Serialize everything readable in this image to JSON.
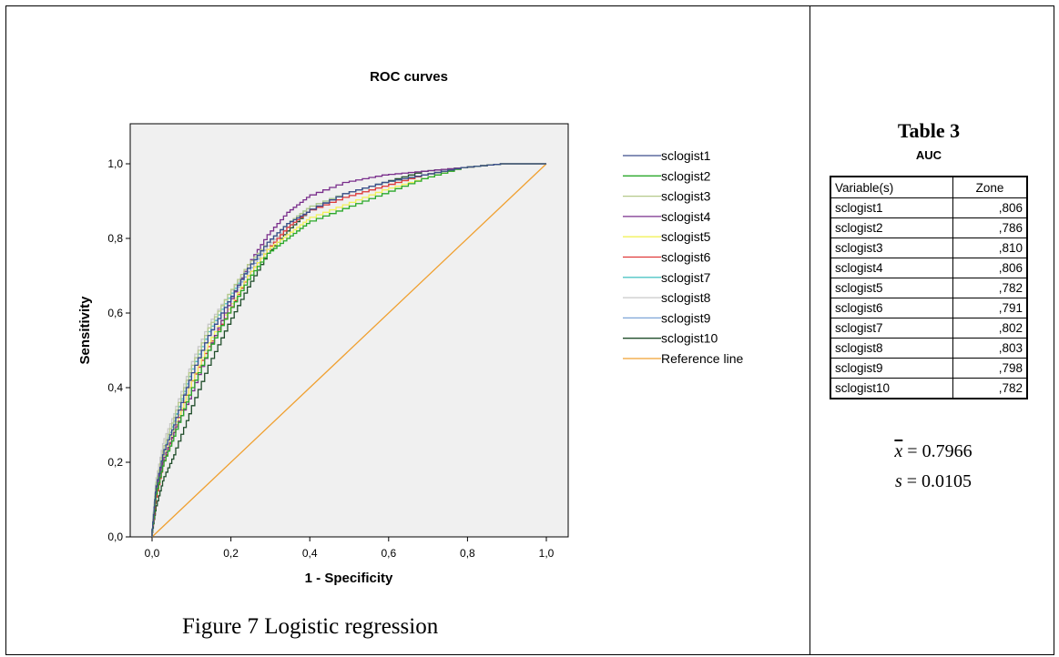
{
  "chart_data": {
    "type": "line",
    "title": "ROC curves",
    "xlabel": "1 - Specificity",
    "ylabel": "Sensitivity",
    "xlim": [
      -0.05,
      1.05
    ],
    "ylim": [
      0.0,
      1.0
    ],
    "xticks": [
      "0,0",
      "0,2",
      "0,4",
      "0,6",
      "0,8",
      "1,0"
    ],
    "yticks": [
      "0,0",
      "0,2",
      "0,4",
      "0,6",
      "0,8",
      "1,0"
    ],
    "grid": false,
    "legend_position": "right",
    "series": [
      {
        "name": "sclogist1",
        "color": "#3c4d8c",
        "x": [
          0,
          0.01,
          0.03,
          0.06,
          0.1,
          0.15,
          0.2,
          0.25,
          0.3,
          0.35,
          0.4,
          0.5,
          0.6,
          0.7,
          0.8,
          0.9,
          1.0
        ],
        "y": [
          0,
          0.12,
          0.22,
          0.3,
          0.42,
          0.54,
          0.63,
          0.72,
          0.79,
          0.84,
          0.87,
          0.92,
          0.95,
          0.97,
          0.99,
          1.0,
          1.0
        ]
      },
      {
        "name": "sclogist2",
        "color": "#2aa82a",
        "x": [
          0,
          0.01,
          0.03,
          0.06,
          0.1,
          0.15,
          0.2,
          0.25,
          0.3,
          0.35,
          0.4,
          0.5,
          0.6,
          0.7,
          0.8,
          0.9,
          1.0
        ],
        "y": [
          0,
          0.1,
          0.19,
          0.27,
          0.38,
          0.5,
          0.6,
          0.69,
          0.76,
          0.8,
          0.84,
          0.88,
          0.92,
          0.96,
          0.99,
          1.0,
          1.0
        ]
      },
      {
        "name": "sclogist3",
        "color": "#b5c98a",
        "x": [
          0,
          0.01,
          0.03,
          0.06,
          0.1,
          0.15,
          0.2,
          0.25,
          0.3,
          0.35,
          0.4,
          0.5,
          0.6,
          0.7,
          0.8,
          0.9,
          1.0
        ],
        "y": [
          0,
          0.13,
          0.23,
          0.32,
          0.44,
          0.56,
          0.65,
          0.73,
          0.79,
          0.84,
          0.88,
          0.92,
          0.95,
          0.97,
          0.99,
          1.0,
          1.0
        ]
      },
      {
        "name": "sclogist4",
        "color": "#7a2f8c",
        "x": [
          0,
          0.01,
          0.03,
          0.06,
          0.1,
          0.15,
          0.2,
          0.25,
          0.3,
          0.35,
          0.4,
          0.5,
          0.6,
          0.7,
          0.8,
          0.9,
          1.0
        ],
        "y": [
          0,
          0.11,
          0.2,
          0.28,
          0.37,
          0.5,
          0.62,
          0.73,
          0.81,
          0.87,
          0.91,
          0.95,
          0.97,
          0.98,
          0.99,
          1.0,
          1.0
        ]
      },
      {
        "name": "sclogist5",
        "color": "#f2f25a",
        "x": [
          0,
          0.01,
          0.03,
          0.06,
          0.1,
          0.15,
          0.2,
          0.25,
          0.3,
          0.35,
          0.4,
          0.5,
          0.6,
          0.7,
          0.8,
          0.9,
          1.0
        ],
        "y": [
          0,
          0.12,
          0.21,
          0.29,
          0.4,
          0.52,
          0.61,
          0.7,
          0.77,
          0.81,
          0.85,
          0.89,
          0.93,
          0.96,
          0.99,
          1.0,
          1.0
        ]
      },
      {
        "name": "sclogist6",
        "color": "#e03a3a",
        "x": [
          0,
          0.01,
          0.03,
          0.06,
          0.1,
          0.15,
          0.2,
          0.25,
          0.3,
          0.35,
          0.4,
          0.5,
          0.6,
          0.7,
          0.8,
          0.9,
          1.0
        ],
        "y": [
          0,
          0.09,
          0.19,
          0.28,
          0.4,
          0.51,
          0.6,
          0.7,
          0.77,
          0.83,
          0.87,
          0.91,
          0.94,
          0.97,
          0.99,
          1.0,
          1.0
        ]
      },
      {
        "name": "sclogist7",
        "color": "#4fc4c4",
        "x": [
          0,
          0.01,
          0.03,
          0.06,
          0.1,
          0.15,
          0.2,
          0.25,
          0.3,
          0.35,
          0.4,
          0.5,
          0.6,
          0.7,
          0.8,
          0.9,
          1.0
        ],
        "y": [
          0,
          0.13,
          0.22,
          0.31,
          0.43,
          0.55,
          0.64,
          0.72,
          0.79,
          0.84,
          0.88,
          0.92,
          0.95,
          0.97,
          0.99,
          1.0,
          1.0
        ]
      },
      {
        "name": "sclogist8",
        "color": "#c8c8c8",
        "x": [
          0,
          0.01,
          0.03,
          0.06,
          0.1,
          0.15,
          0.2,
          0.25,
          0.3,
          0.35,
          0.4,
          0.5,
          0.6,
          0.7,
          0.8,
          0.9,
          1.0
        ],
        "y": [
          0,
          0.14,
          0.25,
          0.33,
          0.45,
          0.57,
          0.65,
          0.72,
          0.78,
          0.83,
          0.87,
          0.91,
          0.94,
          0.97,
          0.99,
          1.0,
          1.0
        ]
      },
      {
        "name": "sclogist9",
        "color": "#7fa6d8",
        "x": [
          0,
          0.01,
          0.03,
          0.06,
          0.1,
          0.15,
          0.2,
          0.25,
          0.3,
          0.35,
          0.4,
          0.5,
          0.6,
          0.7,
          0.8,
          0.9,
          1.0
        ],
        "y": [
          0,
          0.12,
          0.22,
          0.31,
          0.42,
          0.54,
          0.63,
          0.71,
          0.78,
          0.83,
          0.87,
          0.92,
          0.95,
          0.97,
          0.99,
          1.0,
          1.0
        ]
      },
      {
        "name": "sclogist10",
        "color": "#1f4d2a",
        "x": [
          0,
          0.01,
          0.03,
          0.06,
          0.1,
          0.15,
          0.2,
          0.25,
          0.3,
          0.35,
          0.4,
          0.5,
          0.6,
          0.7,
          0.8,
          0.9,
          1.0
        ],
        "y": [
          0,
          0.07,
          0.15,
          0.22,
          0.33,
          0.46,
          0.57,
          0.67,
          0.76,
          0.82,
          0.87,
          0.92,
          0.95,
          0.98,
          0.99,
          1.0,
          1.0
        ]
      },
      {
        "name": "Reference line",
        "color": "#f0a030",
        "x": [
          0,
          1.0
        ],
        "y": [
          0,
          1.0
        ]
      }
    ]
  },
  "caption": "Figure 7 Logistic regression",
  "table": {
    "title": "Table 3",
    "subtitle": "AUC",
    "headers": [
      "Variable(s)",
      "Zone"
    ],
    "rows": [
      [
        "sclogist1",
        ",806"
      ],
      [
        "sclogist2",
        ",786"
      ],
      [
        "sclogist3",
        ",810"
      ],
      [
        "sclogist4",
        ",806"
      ],
      [
        "sclogist5",
        ",782"
      ],
      [
        "sclogist6",
        ",791"
      ],
      [
        "sclogist7",
        ",802"
      ],
      [
        "sclogist8",
        ",803"
      ],
      [
        "sclogist9",
        ",798"
      ],
      [
        "sclogist10",
        ",782"
      ]
    ]
  },
  "stats": {
    "mean_symbol": "x",
    "mean_value": "= 0.7966",
    "sd_symbol": "s",
    "sd_value": "= 0.0105"
  }
}
